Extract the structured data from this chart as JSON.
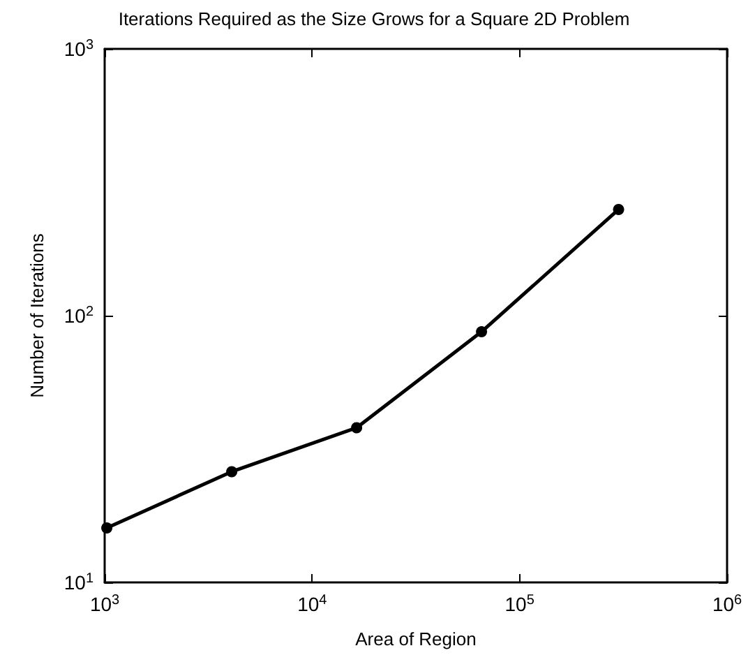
{
  "chart_data": {
    "type": "line",
    "title": "Iterations Required as the Size Grows for a Square 2D Problem",
    "xlabel": "Area of Region",
    "ylabel": "Number of Iterations",
    "x": [
      1024,
      4096,
      16384,
      65536,
      300000
    ],
    "series": [
      {
        "color": "#000000",
        "values": [
          16,
          26,
          38,
          87,
          250
        ]
      }
    ],
    "log": "xy",
    "xlim": [
      1000,
      1000000
    ],
    "ylim": [
      10,
      1000
    ],
    "xticks": [
      {
        "value": 1000,
        "label": "10$^{3}$"
      },
      {
        "value": 10000,
        "label": "10$^{4}$"
      },
      {
        "value": 100000,
        "label": "10$^{5}$"
      },
      {
        "value": 1000000,
        "label": "10$^{6}$"
      }
    ],
    "yticks": [
      {
        "value": 10,
        "label": "10$^{1}$"
      },
      {
        "value": 100,
        "label": "10$^{2}$"
      },
      {
        "value": 1000,
        "label": "10$^{3}$"
      }
    ],
    "marker": "circle",
    "line_style": "solid",
    "grid": false
  }
}
